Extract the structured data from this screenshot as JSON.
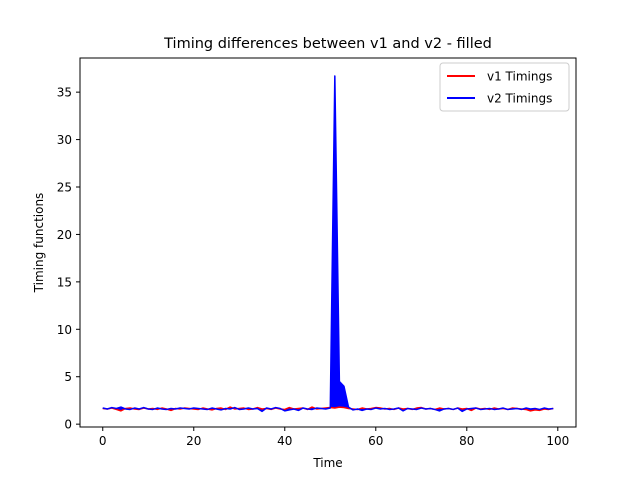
{
  "chart_data": {
    "type": "line",
    "title": "Timing differences between v1 and v2 - filled",
    "xlabel": "Time",
    "ylabel": "Timing functions",
    "xlim": [
      -5,
      104
    ],
    "ylim": [
      -0.3,
      38.6
    ],
    "xticks": [
      0,
      20,
      40,
      60,
      80,
      100
    ],
    "yticks": [
      0,
      5,
      10,
      15,
      20,
      25,
      30,
      35
    ],
    "grid": false,
    "legend_position": "top-right",
    "fill_between": {
      "series": [
        "v1 Timings",
        "v2 Timings"
      ],
      "color": "#0000ff"
    },
    "x": [
      0,
      1,
      2,
      3,
      4,
      5,
      6,
      7,
      8,
      9,
      10,
      11,
      12,
      13,
      14,
      15,
      16,
      17,
      18,
      19,
      20,
      21,
      22,
      23,
      24,
      25,
      26,
      27,
      28,
      29,
      30,
      31,
      32,
      33,
      34,
      35,
      36,
      37,
      38,
      39,
      40,
      41,
      42,
      43,
      44,
      45,
      46,
      47,
      48,
      49,
      50,
      51,
      52,
      53,
      54,
      55,
      56,
      57,
      58,
      59,
      60,
      61,
      62,
      63,
      64,
      65,
      66,
      67,
      68,
      69,
      70,
      71,
      72,
      73,
      74,
      75,
      76,
      77,
      78,
      79,
      80,
      81,
      82,
      83,
      84,
      85,
      86,
      87,
      88,
      89,
      90,
      91,
      92,
      93,
      94,
      95,
      96,
      97,
      98,
      99
    ],
    "series": [
      {
        "name": "v1 Timings",
        "color": "#ff0000",
        "values": [
          1.65,
          1.6,
          1.7,
          1.55,
          1.4,
          1.65,
          1.7,
          1.6,
          1.55,
          1.7,
          1.6,
          1.65,
          1.55,
          1.7,
          1.6,
          1.45,
          1.65,
          1.6,
          1.7,
          1.65,
          1.6,
          1.55,
          1.7,
          1.6,
          1.5,
          1.65,
          1.7,
          1.55,
          1.8,
          1.6,
          1.65,
          1.7,
          1.55,
          1.6,
          1.75,
          1.6,
          1.65,
          1.55,
          1.7,
          1.6,
          1.55,
          1.75,
          1.6,
          1.65,
          1.7,
          1.55,
          1.8,
          1.6,
          1.65,
          1.7,
          1.75,
          1.7,
          1.8,
          1.75,
          1.65,
          1.6,
          1.55,
          1.7,
          1.6,
          1.65,
          1.75,
          1.7,
          1.6,
          1.65,
          1.55,
          1.7,
          1.6,
          1.65,
          1.55,
          1.7,
          1.75,
          1.6,
          1.65,
          1.55,
          1.7,
          1.6,
          1.65,
          1.55,
          1.7,
          1.6,
          1.65,
          1.45,
          1.7,
          1.6,
          1.65,
          1.55,
          1.7,
          1.6,
          1.65,
          1.55,
          1.7,
          1.65,
          1.6,
          1.55,
          1.4,
          1.5,
          1.45,
          1.6,
          1.55,
          1.65
        ]
      },
      {
        "name": "v2 Timings",
        "color": "#0000ff",
        "values": [
          1.7,
          1.6,
          1.75,
          1.65,
          1.8,
          1.6,
          1.55,
          1.7,
          1.6,
          1.75,
          1.6,
          1.55,
          1.7,
          1.6,
          1.55,
          1.65,
          1.6,
          1.7,
          1.65,
          1.6,
          1.7,
          1.65,
          1.6,
          1.55,
          1.7,
          1.6,
          1.5,
          1.65,
          1.6,
          1.75,
          1.55,
          1.6,
          1.7,
          1.6,
          1.65,
          1.35,
          1.7,
          1.6,
          1.75,
          1.65,
          1.4,
          1.5,
          1.6,
          1.45,
          1.7,
          1.6,
          1.55,
          1.7,
          1.65,
          1.6,
          1.7,
          36.7,
          4.5,
          4.0,
          1.8,
          1.5,
          1.6,
          1.45,
          1.6,
          1.55,
          1.7,
          1.6,
          1.65,
          1.55,
          1.6,
          1.7,
          1.4,
          1.65,
          1.6,
          1.55,
          1.7,
          1.6,
          1.65,
          1.55,
          1.4,
          1.6,
          1.65,
          1.55,
          1.7,
          1.35,
          1.6,
          1.65,
          1.7,
          1.55,
          1.6,
          1.65,
          1.55,
          1.6,
          1.7,
          1.55,
          1.6,
          1.65,
          1.55,
          1.7,
          1.6,
          1.65,
          1.55,
          1.7,
          1.6,
          1.65
        ]
      }
    ]
  }
}
